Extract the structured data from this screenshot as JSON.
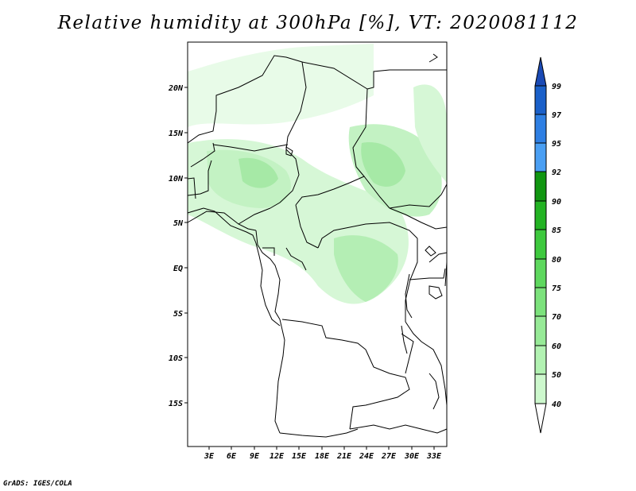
{
  "title": "Relative humidity at 300hPa [%], VT: 2020081112",
  "footer": "GrADS: IGES/COLA",
  "map": {
    "lat_labels": [
      "20N",
      "15N",
      "10N",
      "5N",
      "EQ",
      "5S",
      "10S",
      "15S"
    ],
    "lon_labels": [
      "3E",
      "6E",
      "9E",
      "12E",
      "15E",
      "18E",
      "21E",
      "24E",
      "27E",
      "30E",
      "33E"
    ]
  },
  "colorbar": {
    "levels": [
      "40",
      "50",
      "60",
      "70",
      "75",
      "80",
      "85",
      "90",
      "92",
      "95",
      "97",
      "99"
    ],
    "colors": [
      "#ffffff",
      "#e6fde6",
      "#cdf8cd",
      "#b2f2b2",
      "#97ea97",
      "#7ce27c",
      "#5ed85e",
      "#3ec93e",
      "#23b323",
      "#119611",
      "#4a9ff3",
      "#2e7fe3",
      "#1a60c9",
      "#1a4ab5"
    ]
  }
}
